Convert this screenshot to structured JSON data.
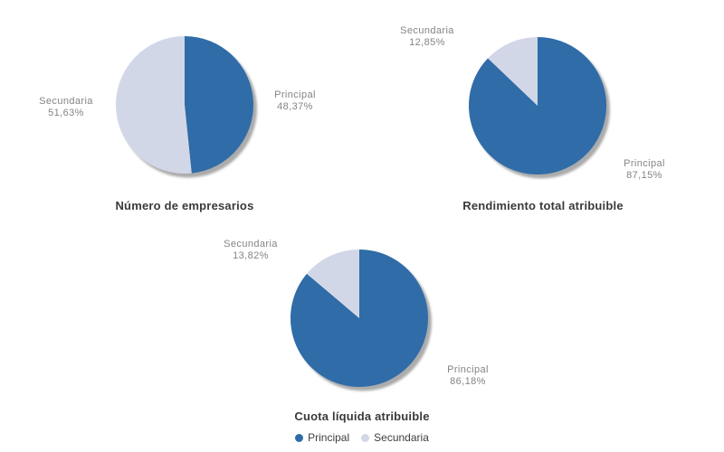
{
  "page": {
    "background": "#ffffff"
  },
  "palette": {
    "principal": "#2f6ca8",
    "secundaria": "#d2d7e8",
    "shadow": "#8f8f8f",
    "data_label_color": "#848484",
    "title_color": "#3a3a3a",
    "legend_text_color": "#404040"
  },
  "chart_data": [
    {
      "type": "pie",
      "title": "Número de empresarios",
      "series": [
        {
          "name": "Principal",
          "value": 48.37,
          "value_label": "48,37%",
          "color": "#2f6ca8"
        },
        {
          "name": "Secundaria",
          "value": 51.63,
          "value_label": "51,63%",
          "color": "#d2d7e8"
        }
      ],
      "unit": "%",
      "start_angle_deg": 0,
      "direction": "clockwise",
      "data_labels": "outside"
    },
    {
      "type": "pie",
      "title": "Rendimiento total atribuible",
      "series": [
        {
          "name": "Principal",
          "value": 87.15,
          "value_label": "87,15%",
          "color": "#2f6ca8"
        },
        {
          "name": "Secundaria",
          "value": 12.85,
          "value_label": "12,85%",
          "color": "#d2d7e8"
        }
      ],
      "unit": "%",
      "start_angle_deg": 0,
      "direction": "clockwise",
      "data_labels": "outside"
    },
    {
      "type": "pie",
      "title": "Cuota líquida atribuible",
      "series": [
        {
          "name": "Principal",
          "value": 86.18,
          "value_label": "86,18%",
          "color": "#2f6ca8"
        },
        {
          "name": "Secundaria",
          "value": 13.82,
          "value_label": "13,82%",
          "color": "#d2d7e8"
        }
      ],
      "unit": "%",
      "start_angle_deg": 0,
      "direction": "clockwise",
      "data_labels": "outside"
    }
  ],
  "legend": {
    "position": "bottom-center",
    "items": [
      {
        "label": "Principal",
        "color": "#2f6ca8"
      },
      {
        "label": "Secundaria",
        "color": "#d2d7e8"
      }
    ]
  }
}
